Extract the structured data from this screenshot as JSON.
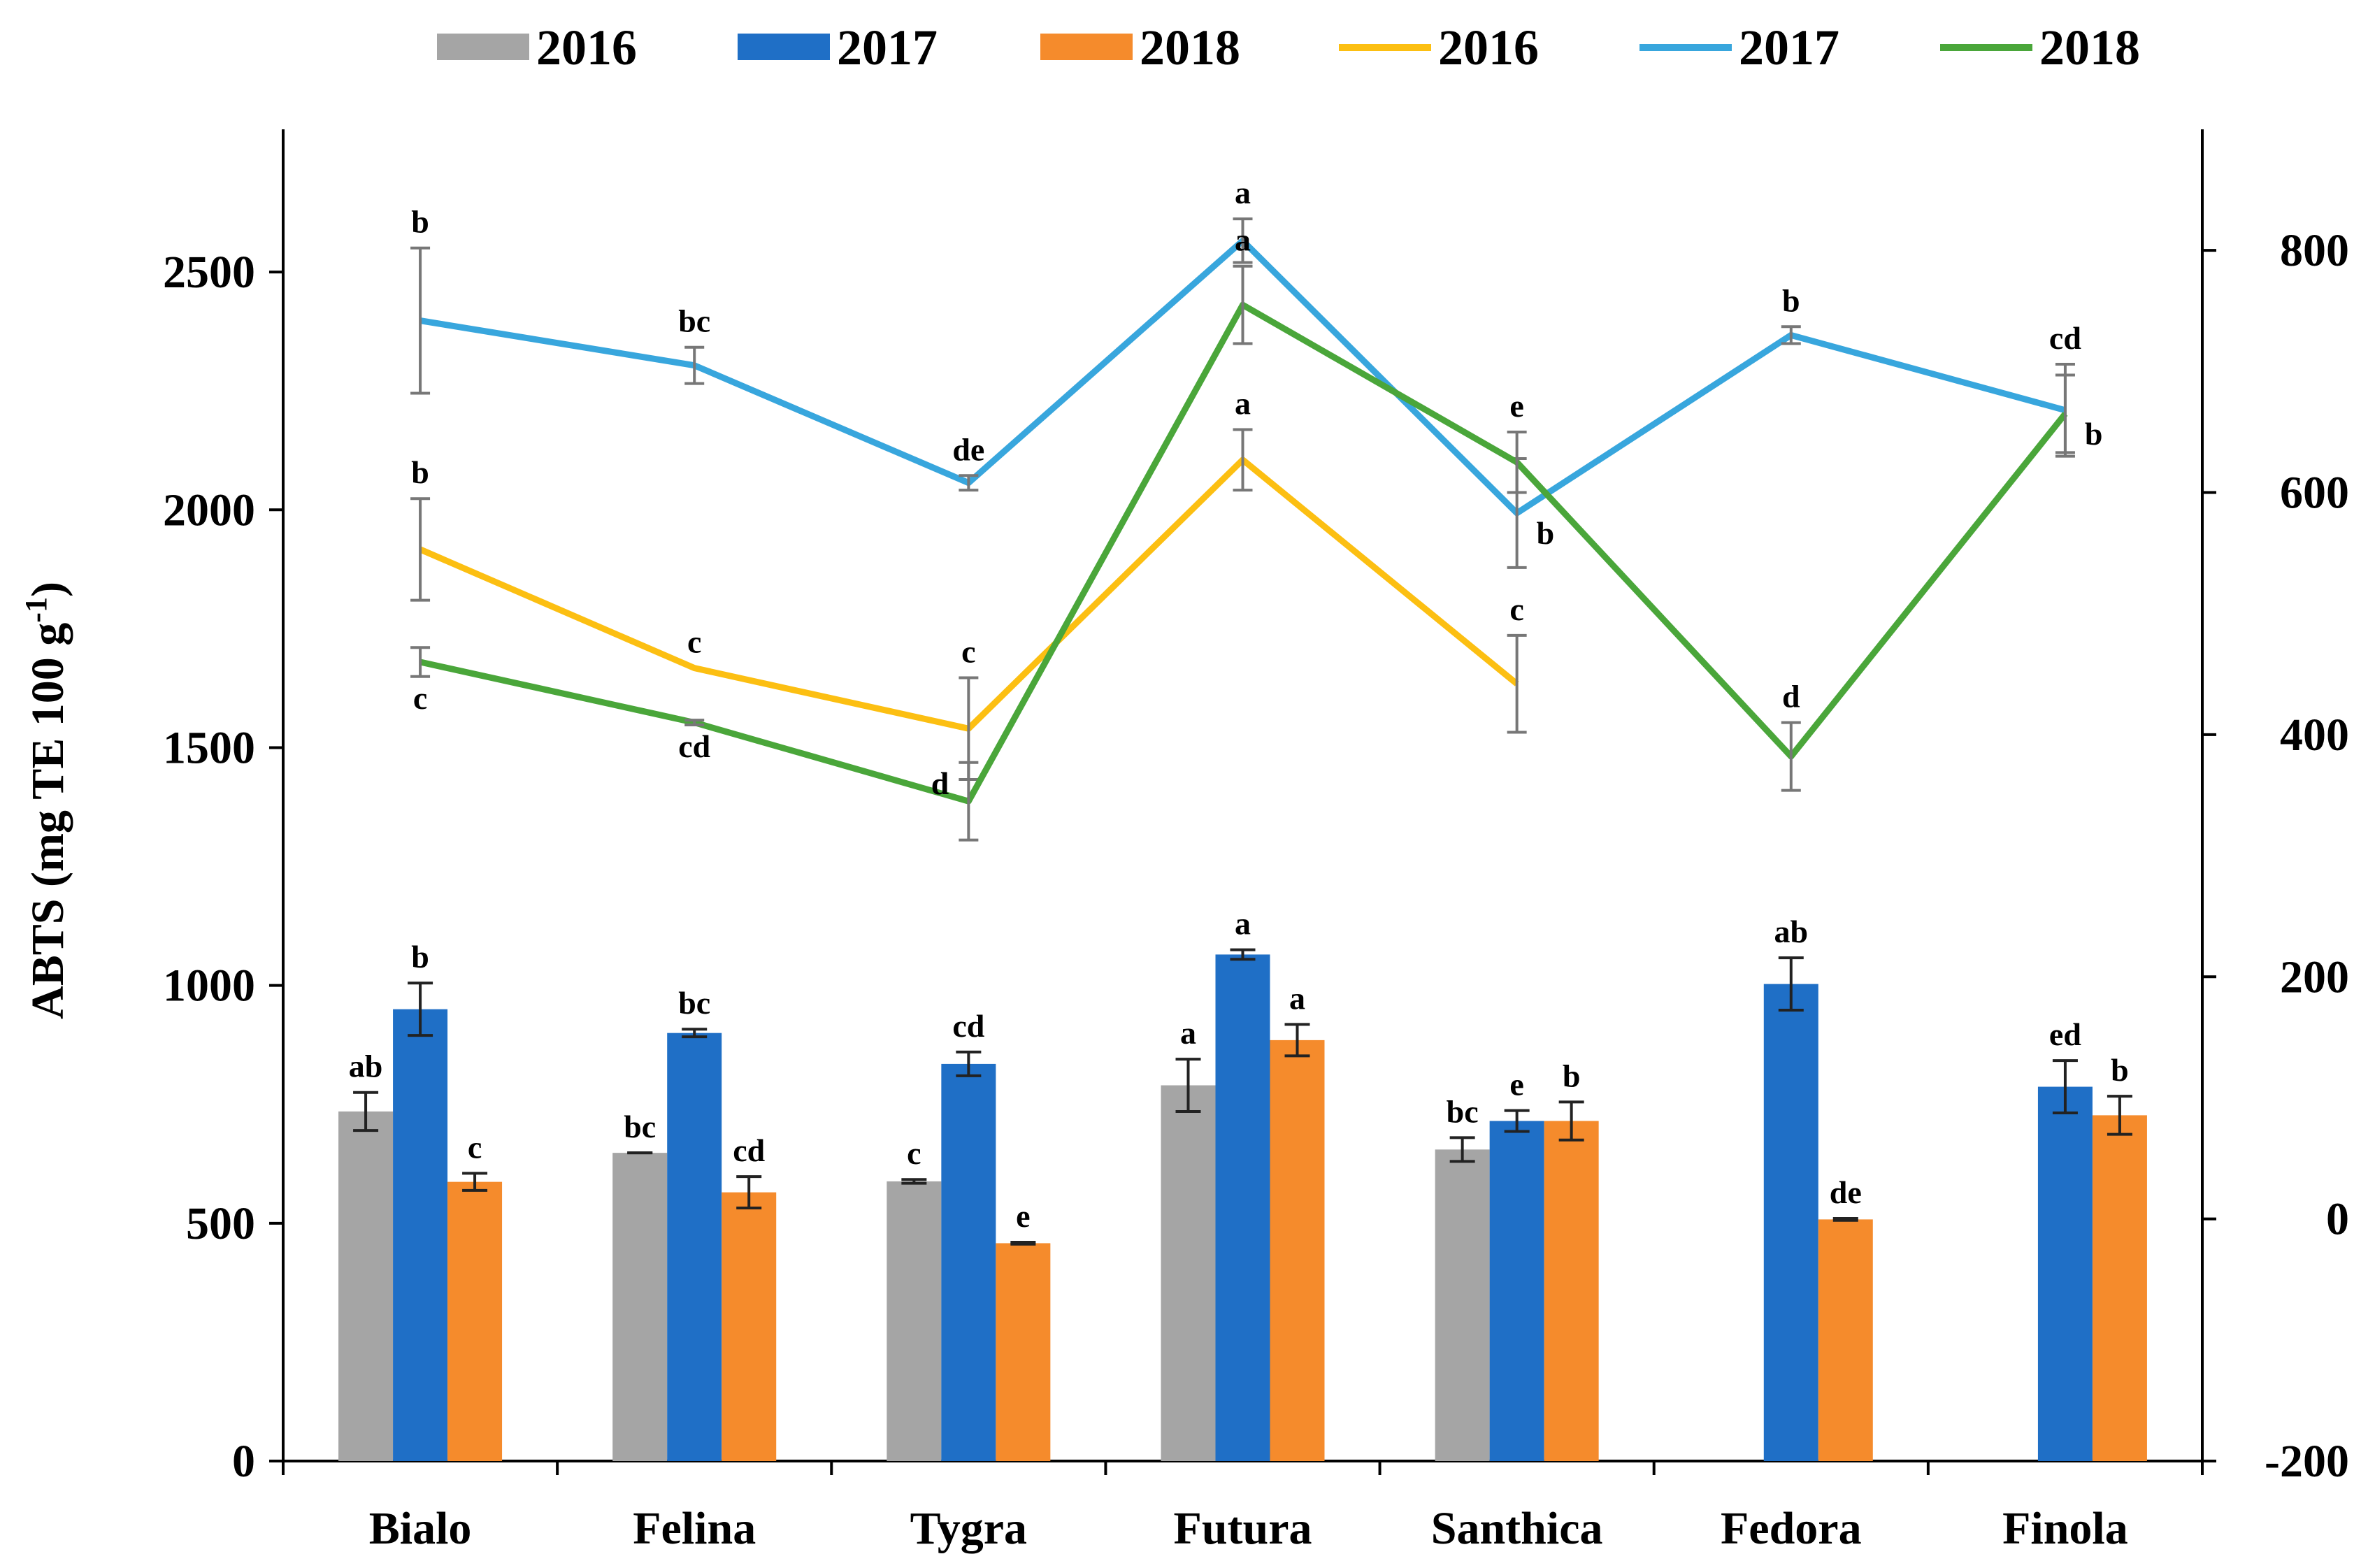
{
  "chart_data": {
    "type": "bar+line",
    "categories": [
      "Bialo",
      "Felina",
      "Tygra",
      "Futura",
      "Santhica",
      "Fedora",
      "Finola"
    ],
    "ylabel": "ABTS (mg TE 100 g",
    "ylabel_sup": "-1",
    "ylabel_close": ")",
    "y_left": {
      "min": 0,
      "max": 2800,
      "ticks": [
        0,
        500,
        1000,
        1500,
        2000,
        2500
      ]
    },
    "y_right": {
      "min": -200,
      "max": 900,
      "ticks": [
        -200,
        0,
        200,
        400,
        600,
        800
      ]
    },
    "legend": [
      {
        "name": "2016",
        "kind": "bar",
        "color": "#a5a5a5"
      },
      {
        "name": "2017",
        "kind": "bar",
        "color": "#1f6fc6"
      },
      {
        "name": "2018",
        "kind": "bar",
        "color": "#f58b2c"
      },
      {
        "name": "2016",
        "kind": "line",
        "color": "#fcbf12"
      },
      {
        "name": "2017",
        "kind": "line",
        "color": "#38a6dd"
      },
      {
        "name": "2018",
        "kind": "line",
        "color": "#4aa63a"
      }
    ],
    "bar_series": [
      {
        "name": "2016",
        "axis": "left",
        "color": "#a5a5a5",
        "values": [
          735,
          648,
          588,
          790,
          655,
          null,
          null
        ],
        "errors": [
          40,
          0,
          4,
          55,
          25,
          null,
          null
        ],
        "letters": [
          "ab",
          "bc",
          "c",
          "a",
          "bc",
          null,
          null
        ]
      },
      {
        "name": "2017",
        "axis": "left",
        "color": "#1f6fc6",
        "values": [
          950,
          900,
          835,
          1065,
          715,
          1003,
          787
        ],
        "errors": [
          55,
          8,
          25,
          10,
          22,
          55,
          55
        ],
        "letters": [
          "b",
          "bc",
          "cd",
          "a",
          "e",
          "ab",
          "ed"
        ]
      },
      {
        "name": "2018",
        "axis": "left",
        "color": "#f58b2c",
        "values": [
          587,
          565,
          458,
          885,
          715,
          508,
          727
        ],
        "errors": [
          18,
          33,
          2,
          33,
          40,
          2,
          40
        ],
        "letters": [
          "c",
          "cd",
          "e",
          "a",
          "b",
          "de",
          "b"
        ]
      }
    ],
    "line_series": [
      {
        "name": "2016",
        "axis": "right",
        "color": "#fcbf12",
        "values": [
          553,
          455,
          405,
          627,
          442,
          null,
          null
        ],
        "errors": [
          42,
          0,
          42,
          25,
          40,
          null,
          null
        ],
        "letters": [
          "b",
          "c",
          "c",
          "a",
          "c",
          null,
          null
        ],
        "letter_pos": [
          "above",
          "above",
          "above",
          "above",
          "above",
          null,
          null
        ]
      },
      {
        "name": "2017",
        "axis": "right",
        "color": "#38a6dd",
        "values": [
          742,
          705,
          608,
          808,
          583,
          730,
          668
        ],
        "errors": [
          60,
          15,
          6,
          18,
          45,
          7,
          38
        ],
        "letters": [
          "b",
          "bc",
          "de",
          "a",
          "b",
          "b",
          "cd"
        ],
        "letter_pos": [
          "above",
          "above",
          "above",
          "above",
          "right",
          "above",
          "above"
        ]
      },
      {
        "name": "2018",
        "axis": "right",
        "color": "#4aa63a",
        "values": [
          460,
          410,
          345,
          755,
          625,
          382,
          665
        ],
        "errors": [
          12,
          2,
          32,
          32,
          25,
          28,
          32
        ],
        "letters": [
          "c",
          "cd",
          "d",
          "a",
          "e",
          "d",
          "b"
        ],
        "letter_pos": [
          "below",
          "below",
          "left",
          "above",
          "above",
          "above",
          "right"
        ]
      }
    ]
  }
}
